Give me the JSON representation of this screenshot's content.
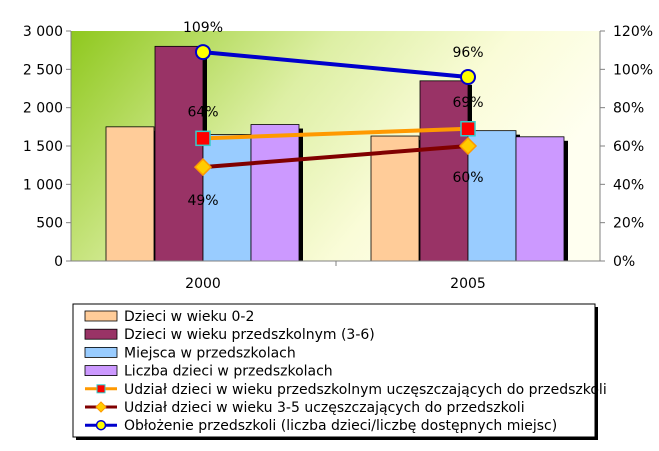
{
  "chart_data": {
    "type": "bar",
    "categories": [
      "2000",
      "2005"
    ],
    "left_axis": {
      "min": 0,
      "max": 3000,
      "ticks": [
        0,
        500,
        1000,
        1500,
        2000,
        2500,
        3000
      ],
      "tick_labels": [
        "0",
        "500",
        "1 000",
        "1 500",
        "2 000",
        "2 500",
        "3 000"
      ]
    },
    "right_axis": {
      "min": 0,
      "max": 120,
      "ticks": [
        0,
        20,
        40,
        60,
        80,
        100,
        120
      ],
      "tick_labels": [
        "0%",
        "20%",
        "40%",
        "60%",
        "80%",
        "100%",
        "120%"
      ]
    },
    "grid": false,
    "legend_position": "bottom",
    "bar_series": [
      {
        "name": "Dzieci w wieku 0-2",
        "values": [
          1750,
          1630
        ],
        "color": "#FFCC99"
      },
      {
        "name": "Dzieci w wieku przedszkolnym (3-6)",
        "values": [
          2800,
          2350
        ],
        "color": "#993366"
      },
      {
        "name": "Miejsca w przedszkolach",
        "values": [
          1650,
          1700
        ],
        "color": "#99CCFF"
      },
      {
        "name": "Liczba dzieci w przedszkolach",
        "values": [
          1780,
          1620
        ],
        "color": "#CC99FF"
      }
    ],
    "line_series": [
      {
        "name": "Udział dzieci w wieku przedszkolnym uczęszczających do przedszkoli",
        "values": [
          64,
          69
        ],
        "labels": [
          "64%",
          "69%"
        ],
        "color": "#FF9900",
        "marker": "square",
        "marker_color": "#FF0000",
        "marker_border": "#33CCCC"
      },
      {
        "name": "Udział dzieci w wieku 3-5 uczęszczających do przedszkoli",
        "values": [
          49,
          60
        ],
        "labels": [
          "49%",
          "60%"
        ],
        "color": "#800000",
        "marker": "diamond",
        "marker_color": "#FFCC00",
        "marker_border": "#FF9900"
      },
      {
        "name": "Obłożenie przedszkoli (liczba dzieci/liczbę dostępnych miejsc)",
        "values": [
          109,
          96
        ],
        "labels": [
          "109%",
          "96%"
        ],
        "color": "#0000CC",
        "marker": "circle",
        "marker_color": "#FFFF00",
        "marker_border": "#0000CC"
      }
    ]
  }
}
